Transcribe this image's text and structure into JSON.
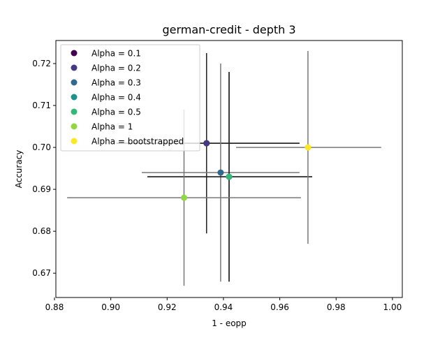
{
  "chart_data": {
    "type": "scatter",
    "title": "german-credit - depth 3",
    "xlabel": "1 - eopp",
    "ylabel": "Accuracy",
    "xlim": [
      0.8805,
      1.0035
    ],
    "ylim": [
      0.6642,
      0.7255
    ],
    "xticks": [
      0.88,
      0.9,
      0.92,
      0.94,
      0.96,
      0.98,
      1.0
    ],
    "xtick_labels": [
      "0.88",
      "0.90",
      "0.92",
      "0.94",
      "0.96",
      "0.98",
      "1.00"
    ],
    "yticks": [
      0.67,
      0.68,
      0.69,
      0.7,
      0.71,
      0.72
    ],
    "ytick_labels": [
      "0.67",
      "0.68",
      "0.69",
      "0.70",
      "0.71",
      "0.72"
    ],
    "grid": false,
    "legend_position": "upper-left",
    "series": [
      {
        "name": "Alpha = 0.1",
        "color": "#440154",
        "x": 0.934,
        "y": 0.701,
        "xerr_low": 0.902,
        "xerr_high": 0.967,
        "yerr_low": 0.6795,
        "yerr_high": 0.7225,
        "errorbar_color": "#222222"
      },
      {
        "name": "Alpha = 0.2",
        "color": "#443983",
        "x": 0.934,
        "y": 0.701,
        "xerr_low": 0.902,
        "xerr_high": 0.967,
        "yerr_low": 0.6795,
        "yerr_high": 0.7225,
        "errorbar_color": "#222222"
      },
      {
        "name": "Alpha = 0.3",
        "color": "#31688e",
        "x": 0.939,
        "y": 0.694,
        "xerr_low": 0.911,
        "xerr_high": 0.967,
        "yerr_low": 0.668,
        "yerr_high": 0.72,
        "errorbar_color": "#777777"
      },
      {
        "name": "Alpha = 0.4",
        "color": "#21918c",
        "x": 0.942,
        "y": 0.693,
        "xerr_low": 0.913,
        "xerr_high": 0.9715,
        "yerr_low": 0.668,
        "yerr_high": 0.718,
        "errorbar_color": "#222222"
      },
      {
        "name": "Alpha = 0.5",
        "color": "#35b779",
        "x": 0.942,
        "y": 0.693,
        "xerr_low": 0.913,
        "xerr_high": 0.9715,
        "yerr_low": 0.668,
        "yerr_high": 0.718,
        "errorbar_color": "#222222"
      },
      {
        "name": "Alpha = 1",
        "color": "#90d743",
        "x": 0.926,
        "y": 0.688,
        "xerr_low": 0.8845,
        "xerr_high": 0.9675,
        "yerr_low": 0.667,
        "yerr_high": 0.709,
        "errorbar_color": "#777777"
      },
      {
        "name": "Alpha = bootstrapped",
        "color": "#fde725",
        "x": 0.97,
        "y": 0.7,
        "xerr_low": 0.9445,
        "xerr_high": 0.996,
        "yerr_low": 0.677,
        "yerr_high": 0.723,
        "errorbar_color": "#777777"
      }
    ]
  }
}
